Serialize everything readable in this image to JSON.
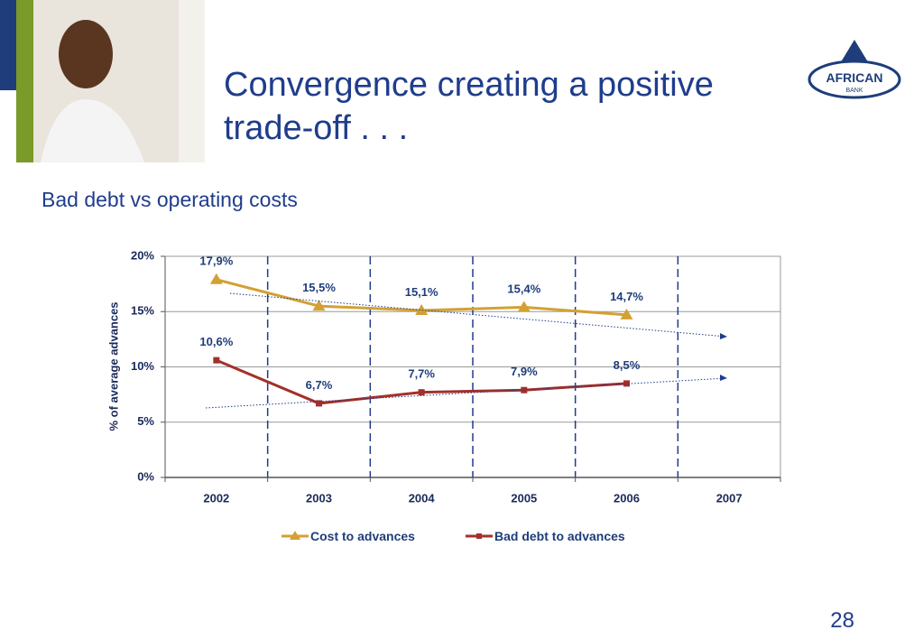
{
  "slide": {
    "title": "Convergence creating a positive trade-off . . .",
    "page_number": "28",
    "logo": {
      "name": "AFRICAN",
      "sub": "BANK"
    }
  },
  "chart_data": {
    "type": "line",
    "title": "Bad debt vs operating costs",
    "y_label": "% of average advances",
    "categories": [
      "2002",
      "2003",
      "2004",
      "2005",
      "2006",
      "2007"
    ],
    "series": [
      {
        "name": "Cost to advances",
        "color": "#d4a033",
        "marker": "triangle",
        "values": [
          17.9,
          15.5,
          15.1,
          15.4,
          14.7,
          null
        ],
        "value_labels": [
          "17,9%",
          "15,5%",
          "15,1%",
          "15,4%",
          "14,7%",
          null
        ]
      },
      {
        "name": "Bad debt to advances",
        "color": "#a3302a",
        "marker": "square",
        "values": [
          10.6,
          6.7,
          7.7,
          7.9,
          8.5,
          null
        ],
        "value_labels": [
          "10,6%",
          "6,7%",
          "7,7%",
          "7,9%",
          "8,5%",
          null
        ]
      }
    ],
    "ylim": [
      0,
      20
    ],
    "yticks": [
      {
        "value": 0,
        "label": "0%"
      },
      {
        "value": 5,
        "label": "5%"
      },
      {
        "value": 10,
        "label": "10%"
      },
      {
        "value": 15,
        "label": "15%"
      },
      {
        "value": 20,
        "label": "20%"
      }
    ],
    "grid": true,
    "legend": "bottom"
  }
}
